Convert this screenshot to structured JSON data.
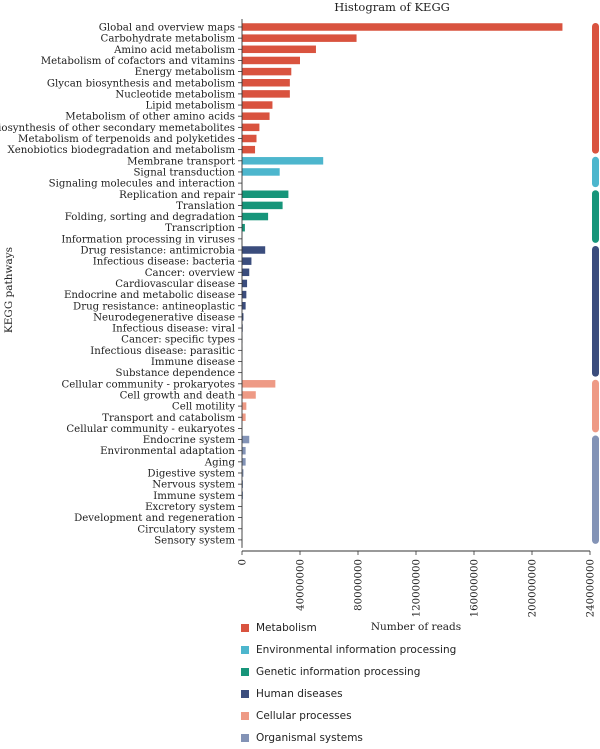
{
  "chart_data": {
    "type": "bar",
    "orientation": "horizontal",
    "title": "Histogram of KEGG",
    "xlabel": "Number of reads",
    "ylabel": "KEGG pathways",
    "xlim": [
      0,
      240000000
    ],
    "xticks": [
      0,
      40000000,
      80000000,
      120000000,
      160000000,
      200000000,
      240000000
    ],
    "xtick_labels": [
      "0",
      "40000000",
      "80000000",
      "120000000",
      "160000000",
      "200000000",
      "240000000"
    ],
    "grid": false,
    "legend_position": "bottom-center",
    "groups": [
      {
        "name": "Metabolism",
        "color": "#d9533f"
      },
      {
        "name": "Environmental information processing",
        "color": "#4db6cd"
      },
      {
        "name": "Genetic information processing",
        "color": "#17957a"
      },
      {
        "name": "Human diseases",
        "color": "#3b4d7d"
      },
      {
        "name": "Cellular processes",
        "color": "#ee9a85"
      },
      {
        "name": "Organismal systems",
        "color": "#8393b6"
      }
    ],
    "categories": [
      {
        "label": "Global and overview maps",
        "value": 221000000,
        "group": 0
      },
      {
        "label": "Carbohydrate metabolism",
        "value": 79000000,
        "group": 0
      },
      {
        "label": "Amino acid metabolism",
        "value": 51000000,
        "group": 0
      },
      {
        "label": "Metabolism of cofactors and vitamins",
        "value": 40000000,
        "group": 0
      },
      {
        "label": "Energy metabolism",
        "value": 34000000,
        "group": 0
      },
      {
        "label": "Glycan biosynthesis and metabolism",
        "value": 33000000,
        "group": 0
      },
      {
        "label": "Nucleotide metabolism",
        "value": 33000000,
        "group": 0
      },
      {
        "label": "Lipid metabolism",
        "value": 21000000,
        "group": 0
      },
      {
        "label": "Metabolism of other amino acids",
        "value": 19000000,
        "group": 0
      },
      {
        "label": "Biosynthesis of other secondary memetabolites",
        "value": 12000000,
        "group": 0
      },
      {
        "label": "Metabolism of terpenoids and polyketides",
        "value": 10000000,
        "group": 0
      },
      {
        "label": "Xenobiotics biodegradation and metabolism",
        "value": 9000000,
        "group": 0
      },
      {
        "label": "Membrane transport",
        "value": 56000000,
        "group": 1
      },
      {
        "label": "Signal transduction",
        "value": 26000000,
        "group": 1
      },
      {
        "label": "Signaling molecules and interaction",
        "value": 0,
        "group": 1
      },
      {
        "label": "Replication and repair",
        "value": 32000000,
        "group": 2
      },
      {
        "label": "Translation",
        "value": 28000000,
        "group": 2
      },
      {
        "label": "Folding, sorting and degradation",
        "value": 18000000,
        "group": 2
      },
      {
        "label": "Transcription",
        "value": 2000000,
        "group": 2
      },
      {
        "label": "Information processing in viruses",
        "value": 0,
        "group": 2
      },
      {
        "label": "Drug resistance: antimicrobia",
        "value": 16000000,
        "group": 3
      },
      {
        "label": "Infectious disease: bacteria",
        "value": 6500000,
        "group": 3
      },
      {
        "label": "Cancer: overview",
        "value": 5000000,
        "group": 3
      },
      {
        "label": "Cardiovascular disease",
        "value": 3500000,
        "group": 3
      },
      {
        "label": "Endocrine and metabolic disease",
        "value": 3000000,
        "group": 3
      },
      {
        "label": "Drug resistance: antineoplastic",
        "value": 2500000,
        "group": 3
      },
      {
        "label": "Neurodegenerative disease",
        "value": 1000000,
        "group": 3
      },
      {
        "label": "Infectious disease: viral",
        "value": 500000,
        "group": 3
      },
      {
        "label": "Cancer: specific types",
        "value": 300000,
        "group": 3
      },
      {
        "label": "Infectious disease: parasitic",
        "value": 200000,
        "group": 3
      },
      {
        "label": "Immune disease",
        "value": 100000,
        "group": 3
      },
      {
        "label": "Substance dependence",
        "value": 100000,
        "group": 3
      },
      {
        "label": "Cellular community - prokaryotes",
        "value": 23000000,
        "group": 4
      },
      {
        "label": "Cell growth and death",
        "value": 9500000,
        "group": 4
      },
      {
        "label": "Cell motility",
        "value": 3000000,
        "group": 4
      },
      {
        "label": "Transport and catabolism",
        "value": 2500000,
        "group": 4
      },
      {
        "label": "Cellular community - eukaryotes",
        "value": 100000,
        "group": 4
      },
      {
        "label": "Endocrine system",
        "value": 5000000,
        "group": 5
      },
      {
        "label": "Environmental adaptation",
        "value": 2500000,
        "group": 5
      },
      {
        "label": "Aging",
        "value": 2500000,
        "group": 5
      },
      {
        "label": "Digestive system",
        "value": 1000000,
        "group": 5
      },
      {
        "label": "Nervous system",
        "value": 700000,
        "group": 5
      },
      {
        "label": "Immune system",
        "value": 700000,
        "group": 5
      },
      {
        "label": "Excretory system",
        "value": 300000,
        "group": 5
      },
      {
        "label": "Development and regeneration",
        "value": 200000,
        "group": 5
      },
      {
        "label": "Circulatory system",
        "value": 200000,
        "group": 5
      },
      {
        "label": "Sensory system",
        "value": 100000,
        "group": 5
      }
    ]
  }
}
